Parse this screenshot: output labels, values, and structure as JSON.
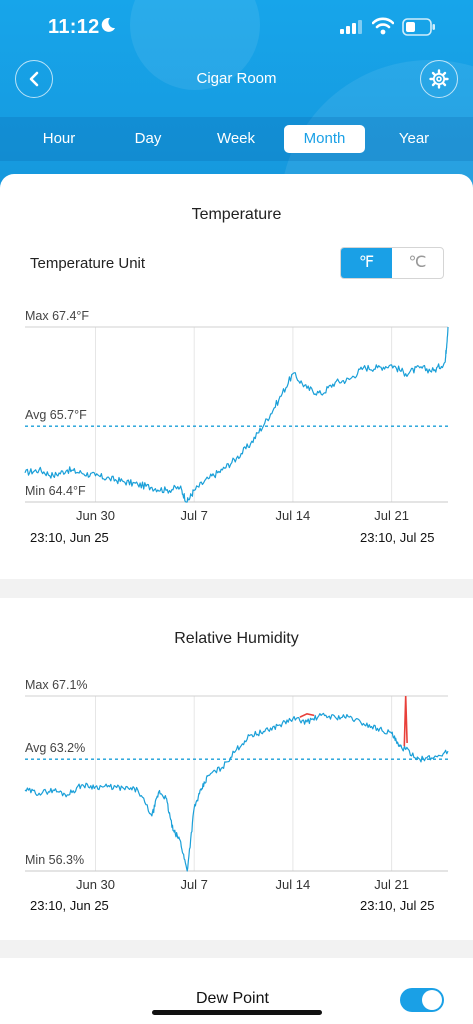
{
  "status_bar": {
    "time": "11:12"
  },
  "nav": {
    "title": "Cigar Room"
  },
  "tabs": [
    {
      "label": "Hour",
      "active": false
    },
    {
      "label": "Day",
      "active": false
    },
    {
      "label": "Week",
      "active": false
    },
    {
      "label": "Month",
      "active": true
    },
    {
      "label": "Year",
      "active": false
    }
  ],
  "temperature": {
    "title": "Temperature",
    "unit_label": "Temperature Unit",
    "unit_options": [
      "℉",
      "℃"
    ],
    "selected_unit": "℉",
    "range_start": "23:10,  Jun 25",
    "range_end": "23:10,  Jul 25"
  },
  "humidity": {
    "title": "Relative Humidity",
    "range_start": "23:10,  Jun 25",
    "range_end": "23:10,  Jul 25"
  },
  "dew_point": {
    "label": "Dew Point",
    "enabled": true
  },
  "colors": {
    "header": "#17a5ea",
    "accent": "#1aa0e6",
    "line": "#1a9fd8",
    "alert": "#e8403a"
  },
  "chart_data": [
    {
      "type": "line",
      "title": "Temperature",
      "max_label": "Max 67.4°F",
      "avg_label": "Avg 65.7°F",
      "min_label": "Min 64.4°F",
      "ylim": [
        64.4,
        67.4
      ],
      "avg": 65.7,
      "x_ticks": [
        "Jun 30",
        "Jul 7",
        "Jul 14",
        "Jul 21"
      ],
      "x_tick_days": [
        5,
        12,
        19,
        26
      ],
      "x_range_days": [
        0,
        30
      ],
      "grid": "vertical",
      "series": [
        {
          "x": [
            0,
            1,
            2,
            3,
            4,
            5,
            6,
            7,
            8,
            9,
            10,
            11,
            11.5,
            12,
            13,
            14,
            15,
            16,
            17,
            18,
            19,
            20,
            21,
            22,
            23,
            24,
            25,
            26,
            27,
            28,
            29,
            29.8,
            30
          ],
          "y": [
            64.9,
            64.95,
            64.85,
            64.95,
            64.9,
            64.85,
            64.8,
            64.75,
            64.7,
            64.65,
            64.6,
            64.65,
            64.4,
            64.6,
            64.8,
            64.95,
            65.15,
            65.4,
            65.75,
            66.15,
            66.6,
            66.35,
            66.25,
            66.45,
            66.5,
            66.7,
            66.7,
            66.75,
            66.6,
            66.7,
            66.65,
            66.8,
            67.4
          ]
        }
      ]
    },
    {
      "type": "line",
      "title": "Relative Humidity",
      "max_label": "Max 67.1%",
      "avg_label": "Avg 63.2%",
      "min_label": "Min 56.3%",
      "ylim": [
        56.3,
        67.1
      ],
      "avg": 63.2,
      "x_ticks": [
        "Jun 30",
        "Jul 7",
        "Jul 14",
        "Jul 21"
      ],
      "x_tick_days": [
        5,
        12,
        19,
        26
      ],
      "x_range_days": [
        0,
        30
      ],
      "grid": "vertical",
      "series": [
        {
          "x": [
            0,
            1,
            2,
            3,
            4,
            5,
            6,
            7,
            8,
            9,
            9.5,
            10,
            10.5,
            11,
            11.5,
            12,
            12.5,
            13,
            14,
            15,
            16,
            17,
            18,
            19,
            20,
            21,
            22,
            23,
            24,
            25,
            26,
            26.5,
            27,
            28,
            29,
            30
          ],
          "y": [
            61.3,
            61.1,
            61.3,
            61,
            61.6,
            61.5,
            61.5,
            61.4,
            61.3,
            59.7,
            61.2,
            60.8,
            58.8,
            58.2,
            56.3,
            60.2,
            61.3,
            62.2,
            62.7,
            63.8,
            64.7,
            64.9,
            65.3,
            65.7,
            65.5,
            65.9,
            65.8,
            65.8,
            65.4,
            65.1,
            64.8,
            64.0,
            63.8,
            63.2,
            63.3,
            63.7
          ]
        }
      ],
      "highlights": [
        {
          "x": [
            19.5,
            20,
            20.5
          ],
          "y": [
            65.8,
            66.0,
            65.9
          ]
        },
        {
          "x": [
            26.9,
            27,
            27.1
          ],
          "y": [
            64.0,
            67.1,
            64.2
          ]
        }
      ]
    }
  ]
}
